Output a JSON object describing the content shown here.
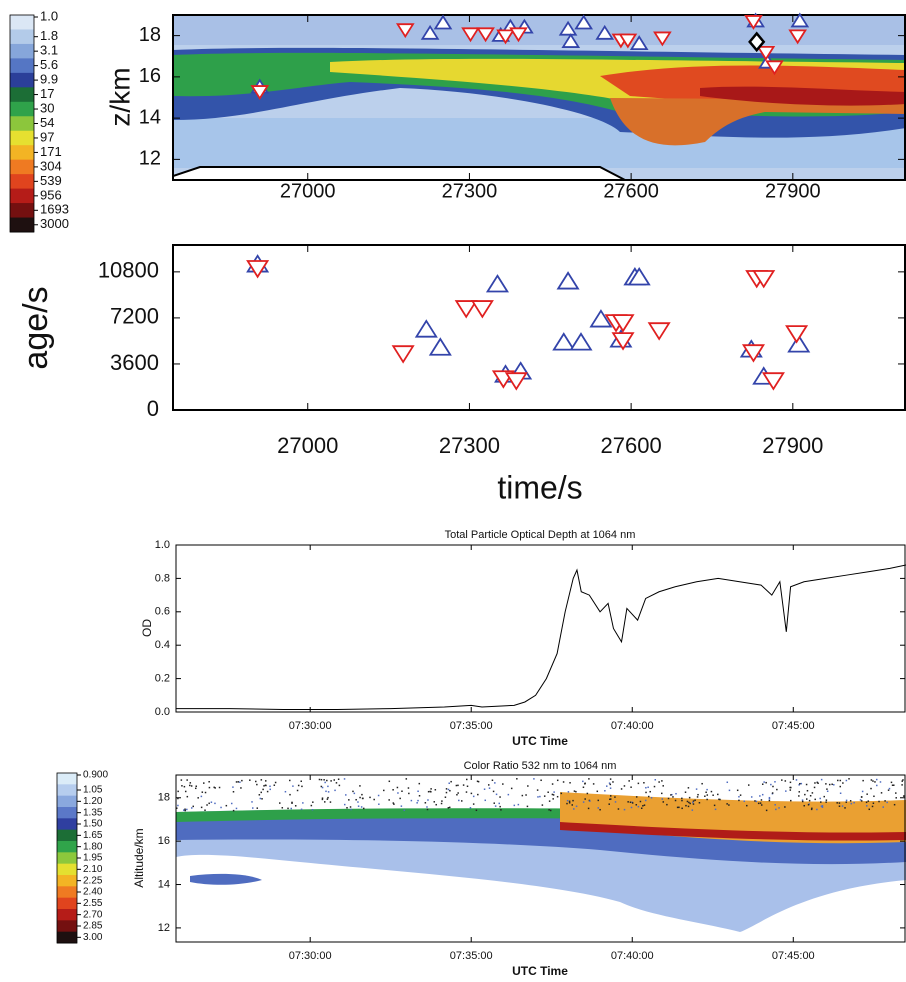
{
  "chart_data": [
    {
      "type": "scatter",
      "ylabel": "z/km",
      "xlim": [
        26750,
        28110
      ],
      "xticks": [
        27000,
        27300,
        27600,
        27900
      ],
      "ylim": [
        11,
        19
      ],
      "yticks": [
        12,
        14,
        16,
        18
      ],
      "colorbar": {
        "labels": [
          "1.0",
          "1.8",
          "3.1",
          "5.6",
          "9.9",
          "17",
          "30",
          "54",
          "97",
          "171",
          "304",
          "539",
          "956",
          "1693",
          "3000"
        ],
        "colors": [
          "#dbe7f5",
          "#b3cbe9",
          "#86a6da",
          "#5576c4",
          "#2b3f99",
          "#1c6e36",
          "#2fa24a",
          "#8cc63c",
          "#e6e030",
          "#f3b424",
          "#ef7a22",
          "#e0441e",
          "#b51c18",
          "#741010",
          "#1e1010"
        ]
      },
      "series": [
        {
          "color": "#3344aa",
          "marker": "triangle-up",
          "x": [
            26911,
            27227,
            27251,
            27358,
            27376,
            27402,
            27483,
            27488,
            27512,
            27551,
            27615,
            27831,
            27853,
            27913
          ],
          "values": [
            15.5,
            18.1,
            18.6,
            18.0,
            18.4,
            18.4,
            18.3,
            17.7,
            18.6,
            18.1,
            17.6,
            18.7,
            16.7,
            18.7
          ]
        },
        {
          "color": "#e02020",
          "marker": "triangle-down",
          "x": [
            26911,
            27181,
            27302,
            27330,
            27367,
            27391,
            27581,
            27594,
            27658,
            27827,
            27850,
            27866,
            27909
          ],
          "values": [
            15.3,
            18.3,
            18.1,
            18.1,
            18.0,
            18.1,
            17.8,
            17.8,
            17.9,
            18.7,
            17.2,
            16.5,
            18.0
          ]
        },
        {
          "color": "#000000",
          "marker": "diamond",
          "x": [
            27833
          ],
          "values": [
            17.7
          ]
        }
      ]
    },
    {
      "type": "scatter",
      "ylabel": "age/s",
      "xlabel": "time/s",
      "xlim": [
        26750,
        28110
      ],
      "xticks": [
        27000,
        27300,
        27600,
        27900
      ],
      "ylim": [
        0,
        12900
      ],
      "yticks": [
        0,
        3600,
        7200,
        10800
      ],
      "series": [
        {
          "color": "#3344aa",
          "marker": "triangle-up",
          "x": [
            26907,
            27220,
            27246,
            27352,
            27367,
            27395,
            27475,
            27483,
            27507,
            27544,
            27581,
            27607,
            27615,
            27823,
            27846,
            27911
          ],
          "values": [
            11350,
            6260,
            4850,
            9790,
            2740,
            2980,
            5250,
            10020,
            5250,
            7050,
            5480,
            10340,
            10340,
            4700,
            2580,
            5090
          ]
        },
        {
          "color": "#e02020",
          "marker": "triangle-down",
          "x": [
            26907,
            27177,
            27294,
            27324,
            27363,
            27387,
            27572,
            27585,
            27585,
            27652,
            27827,
            27833,
            27846,
            27864,
            27907
          ],
          "values": [
            11120,
            4460,
            7990,
            7990,
            2500,
            2350,
            6890,
            6890,
            5480,
            6260,
            4540,
            10340,
            10340,
            2350,
            6030
          ]
        }
      ]
    },
    {
      "type": "line",
      "title": "Total Particle Optical Depth at 1064 nm",
      "ylabel": "OD",
      "xlabel": "UTC Time",
      "xlim": [
        26750,
        28110
      ],
      "xticks": [
        {
          "value": 27000,
          "label": "07:30:00"
        },
        {
          "value": 27300,
          "label": "07:35:00"
        },
        {
          "value": 27600,
          "label": "07:40:00"
        },
        {
          "value": 27900,
          "label": "07:45:00"
        }
      ],
      "ylim": [
        0,
        1
      ],
      "yticks": [
        {
          "value": 0,
          "label": "0.0"
        },
        0.2,
        0.4,
        0.6,
        0.8,
        {
          "value": 1,
          "label": "1.0"
        }
      ],
      "color": "#000000",
      "x": [
        26750,
        26850,
        26950,
        27050,
        27150,
        27250,
        27300,
        27320,
        27380,
        27400,
        27420,
        27440,
        27460,
        27475,
        27490,
        27497,
        27505,
        27520,
        27540,
        27555,
        27565,
        27580,
        27590,
        27610,
        27625,
        27650,
        27680,
        27720,
        27760,
        27800,
        27840,
        27860,
        27875,
        27887,
        27895,
        27920,
        27960,
        28000,
        28040,
        28080,
        28110
      ],
      "values": [
        0.02,
        0.02,
        0.015,
        0.015,
        0.02,
        0.03,
        0.04,
        0.03,
        0.04,
        0.06,
        0.1,
        0.2,
        0.35,
        0.6,
        0.8,
        0.85,
        0.72,
        0.7,
        0.6,
        0.65,
        0.5,
        0.42,
        0.62,
        0.55,
        0.68,
        0.72,
        0.75,
        0.78,
        0.8,
        0.78,
        0.76,
        0.7,
        0.78,
        0.48,
        0.75,
        0.78,
        0.8,
        0.82,
        0.84,
        0.86,
        0.88
      ]
    },
    {
      "type": "heatmap",
      "title": "Color Ratio 532 nm to 1064 nm",
      "ylabel": "Altitude/km",
      "xlabel": "UTC Time",
      "xlim": [
        26750,
        28110
      ],
      "xticks": [
        {
          "value": 27000,
          "label": "07:30:00"
        },
        {
          "value": 27300,
          "label": "07:35:00"
        },
        {
          "value": 27600,
          "label": "07:40:00"
        },
        {
          "value": 27900,
          "label": "07:45:00"
        }
      ],
      "ylim": [
        11.35,
        19.05
      ],
      "yticks": [
        12,
        14,
        16,
        18
      ],
      "colorbar": {
        "labels": [
          "0.900",
          "1.05",
          "1.20",
          "1.35",
          "1.50",
          "1.65",
          "1.80",
          "1.95",
          "2.10",
          "2.25",
          "2.40",
          "2.55",
          "2.70",
          "2.85",
          "3.00"
        ],
        "colors": [
          "#dbecf8",
          "#b6cdee",
          "#8aa8de",
          "#5b78c8",
          "#2f3fa0",
          "#1c6e36",
          "#30a44a",
          "#8cc83c",
          "#e4e030",
          "#f3b424",
          "#ef7a22",
          "#e0441e",
          "#b51c18",
          "#741010",
          "#1e1010"
        ]
      }
    }
  ]
}
